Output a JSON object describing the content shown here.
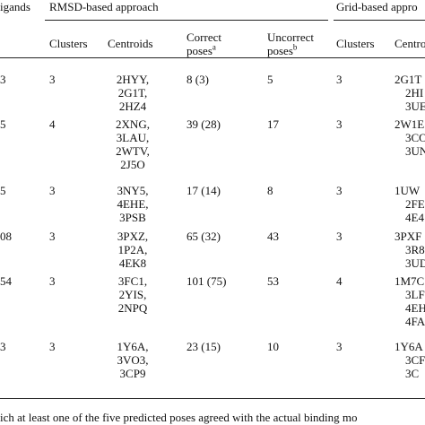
{
  "header": {
    "ligands": "igands",
    "rmsd": "RMSD-based approach",
    "grid": "Grid-based appro"
  },
  "columns": [
    {
      "label": "Clusters"
    },
    {
      "label": "Centroids"
    },
    {
      "label": [
        "Correct",
        "poses"
      ],
      "note": "a"
    },
    {
      "label": [
        "Uncorrect",
        "poses"
      ],
      "note": "b"
    },
    {
      "label": "Clusters"
    },
    {
      "label": "Centroi"
    }
  ],
  "rows": [
    {
      "ligands": "3",
      "clusters": "3",
      "centroids": [
        "2HYY,",
        "2G1T,",
        "2HZ4"
      ],
      "correct": "8 (3)",
      "uncorrect": "5",
      "grid_clusters": "3",
      "grid_centroids": [
        "2G1T",
        "2HI",
        "3UE"
      ]
    },
    {
      "ligands": "5",
      "clusters": "4",
      "centroids": [
        "2XNG,",
        "3LAU,",
        "2WTV,",
        "2J5O"
      ],
      "correct": "39 (28)",
      "uncorrect": "17",
      "grid_clusters": "3",
      "grid_centroids": [
        "2W1E",
        "3CO",
        "3UN"
      ]
    },
    {
      "ligands": "5",
      "clusters": "3",
      "centroids": [
        "3NY5,",
        "4EHE,",
        "3PSB"
      ],
      "correct": "17 (14)",
      "uncorrect": "8",
      "grid_clusters": "3",
      "grid_centroids": [
        "1UW",
        "2FE",
        "4E4"
      ]
    },
    {
      "ligands": "08",
      "clusters": "3",
      "centroids": [
        "3PXZ,",
        "1P2A,",
        "4EK8"
      ],
      "correct": "65 (32)",
      "uncorrect": "43",
      "grid_clusters": "3",
      "grid_centroids": [
        "3PXF",
        "3R8",
        "3UD"
      ]
    },
    {
      "ligands": "54",
      "clusters": "3",
      "centroids": [
        "3FC1,",
        "2YIS,",
        "2NPQ"
      ],
      "correct": "101 (75)",
      "uncorrect": "53",
      "grid_clusters": "4",
      "grid_centroids": [
        "1M7C",
        "3LF",
        "4EH",
        "4FA"
      ]
    },
    {
      "ligands": "3",
      "clusters": "3",
      "centroids": [
        "1Y6A,",
        "3VO3,",
        "3CP9"
      ],
      "correct": "23 (15)",
      "uncorrect": "10",
      "grid_clusters": "3",
      "grid_centroids": [
        "1Y6A",
        "3CF",
        "3C"
      ]
    }
  ],
  "footnote": "ich at least one of the five predicted poses agreed with the actual binding mo"
}
